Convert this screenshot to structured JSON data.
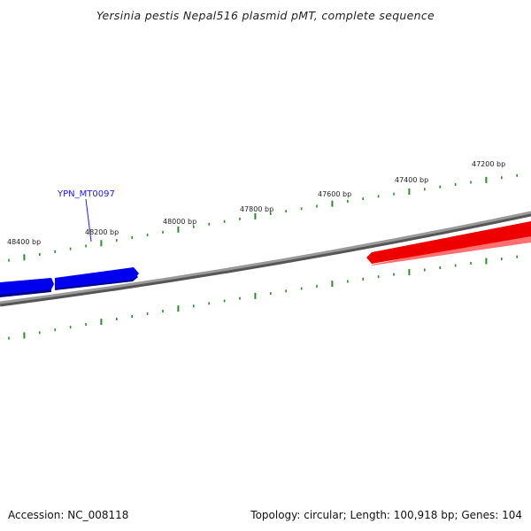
{
  "title": "Yersinia pestis Nepal516 plasmid pMT, complete sequence",
  "footer": {
    "accession": "Accession: NC_008118",
    "summary": "Topology: circular; Length: 100,918 bp; Genes: 104"
  },
  "colors": {
    "backbone": "#8a8a8a",
    "forward_gene": "#0000ee",
    "reverse_gene": "#ee0000",
    "ticks": "#2e8b2e",
    "label_line": "#1a1aff"
  },
  "ruler_labels": [
    "48400 bp",
    "48200 bp",
    "48000 bp",
    "47800 bp",
    "47600 bp",
    "47400 bp",
    "47200 bp"
  ],
  "gene_labels": [
    "YPN_MT0097"
  ]
}
